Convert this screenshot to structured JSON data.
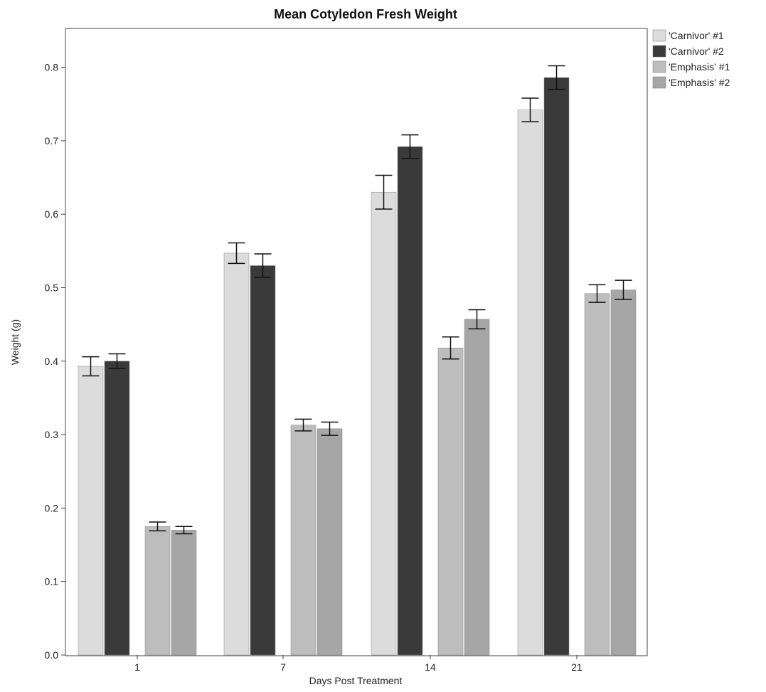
{
  "chart_data": {
    "type": "bar",
    "title": "Mean Cotyledon Fresh Weight",
    "xlabel": "Days Post Treatment",
    "ylabel": "Weight (g)",
    "categories": [
      "1",
      "7",
      "14",
      "21"
    ],
    "ylim": [
      0,
      0.85
    ],
    "yticks": [
      "0.0",
      "0.1",
      "0.2",
      "0.3",
      "0.4",
      "0.5",
      "0.6",
      "0.7",
      "0.8"
    ],
    "grid": false,
    "legend_position": "right",
    "error_bars": true,
    "series": [
      {
        "name": "'Carnivor' #1",
        "color": "#dcdcdc",
        "values": [
          0.393,
          0.547,
          0.63,
          0.742
        ],
        "errors": [
          0.013,
          0.014,
          0.023,
          0.016
        ]
      },
      {
        "name": "'Carnivor' #2",
        "color": "#3a3a3a",
        "values": [
          0.4,
          0.53,
          0.692,
          0.786
        ],
        "errors": [
          0.01,
          0.016,
          0.016,
          0.016
        ]
      },
      {
        "name": "'Emphasis' #1",
        "color": "#bdbdbd",
        "values": [
          0.175,
          0.313,
          0.418,
          0.492
        ],
        "errors": [
          0.006,
          0.008,
          0.015,
          0.012
        ]
      },
      {
        "name": "'Emphasis' #2",
        "color": "#a6a6a6",
        "values": [
          0.17,
          0.308,
          0.457,
          0.497
        ],
        "errors": [
          0.005,
          0.009,
          0.013,
          0.013
        ]
      }
    ]
  }
}
